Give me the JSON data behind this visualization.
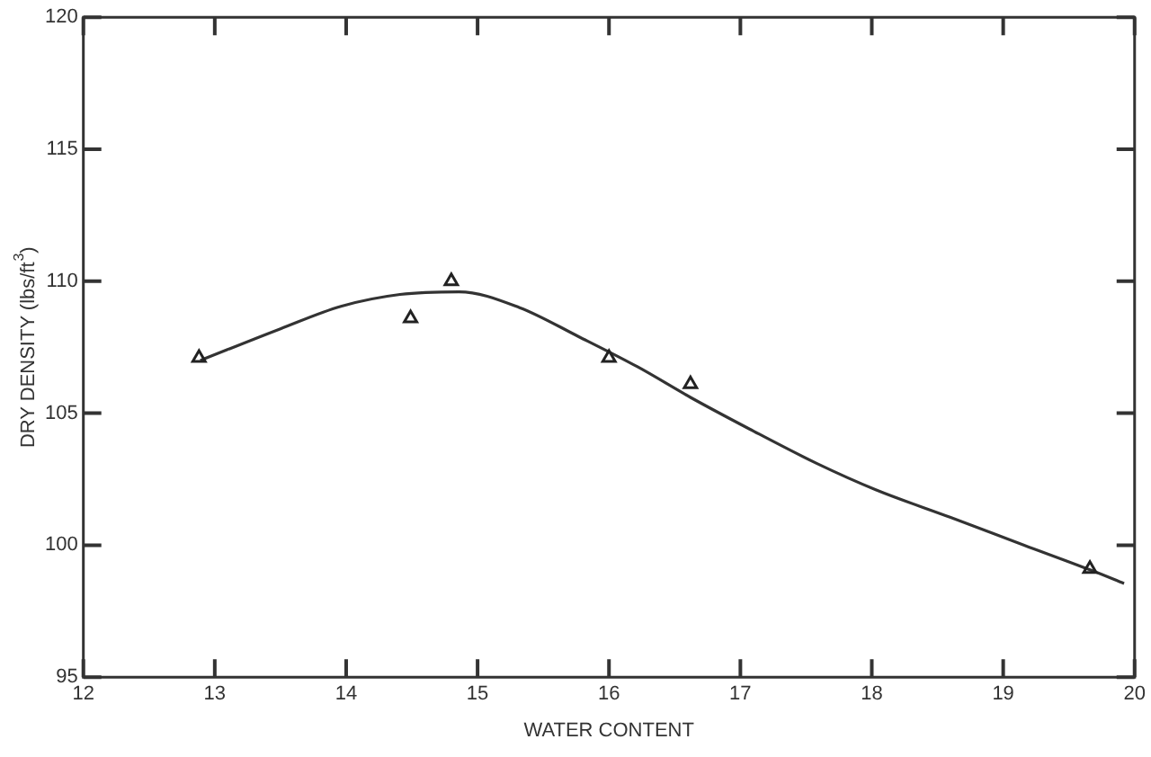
{
  "chart_data": {
    "type": "scatter",
    "xlabel": "WATER CONTENT",
    "ylabel": "DRY DENSITY (lbs/ft$^{3}$)",
    "xlim": [
      12,
      20
    ],
    "ylim": [
      95,
      120
    ],
    "xticks": [
      12,
      13,
      14,
      15,
      16,
      17,
      18,
      19,
      20
    ],
    "yticks": [
      95,
      100,
      105,
      110,
      115,
      120
    ],
    "grid": false,
    "legend": false,
    "series": [
      {
        "marker": "triangle",
        "color": "#222222",
        "x": [
          12.88,
          14.49,
          14.8,
          16.0,
          16.62,
          19.66
        ],
        "values": [
          107.1,
          108.6,
          110.0,
          107.1,
          106.1,
          99.1
        ]
      },
      {
        "type": "line",
        "marker": "none",
        "line_style": "solid",
        "color": "#333333",
        "x": [
          12.89,
          13.5,
          13.96,
          14.41,
          14.86,
          15.32,
          15.77,
          16.22,
          16.62,
          17.07,
          17.58,
          18.03,
          18.6,
          19.16,
          19.67,
          19.92
        ],
        "values": [
          107.0,
          108.2,
          109.05,
          109.5,
          109.6,
          109.0,
          107.9,
          106.75,
          105.6,
          104.4,
          103.1,
          102.1,
          101.05,
          100.0,
          99.05,
          98.55
        ]
      }
    ]
  }
}
